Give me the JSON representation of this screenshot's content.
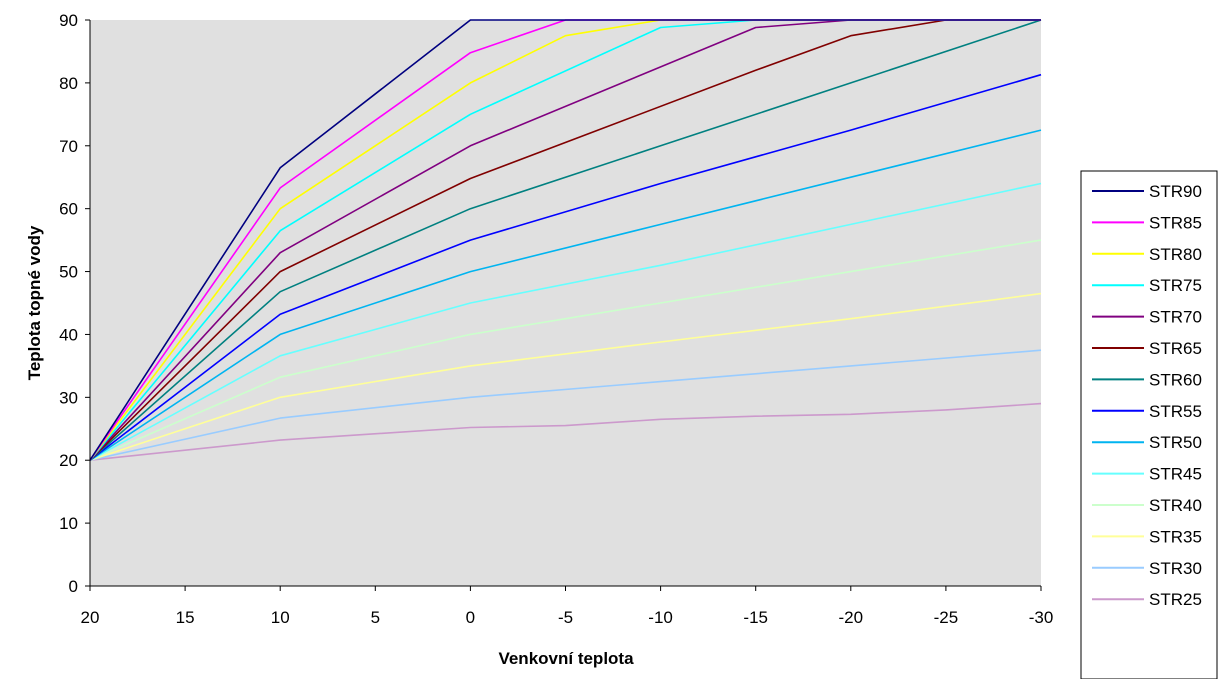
{
  "chart_data": {
    "type": "line",
    "title": "",
    "xlabel": "Venkovní teplota",
    "ylabel": "Teplota topné vody",
    "x": [
      20,
      10,
      0,
      -10,
      -20,
      -30
    ],
    "x_ticks": [
      "20",
      "15",
      "10",
      "5",
      "0",
      "-5",
      "-10",
      "-15",
      "-20",
      "-25",
      "-30"
    ],
    "y_ticks": [
      "0",
      "10",
      "20",
      "30",
      "40",
      "50",
      "60",
      "70",
      "80",
      "90"
    ],
    "xlim": [
      20,
      -30
    ],
    "ylim": [
      0,
      90
    ],
    "grid": false,
    "plot_background": "#e0e0e0",
    "legend_position": "right",
    "series": [
      {
        "name": "STR90",
        "color": "#000080",
        "points": [
          [
            20,
            20
          ],
          [
            10,
            66.5
          ],
          [
            0,
            90
          ],
          [
            -10,
            90
          ],
          [
            -20,
            90
          ],
          [
            -30,
            90
          ]
        ]
      },
      {
        "name": "STR85",
        "color": "#ff00ff",
        "points": [
          [
            20,
            20
          ],
          [
            10,
            63.3
          ],
          [
            0,
            84.8
          ],
          [
            -5,
            90
          ],
          [
            -10,
            90
          ],
          [
            -20,
            90
          ],
          [
            -30,
            90
          ]
        ]
      },
      {
        "name": "STR80",
        "color": "#ffff00",
        "points": [
          [
            20,
            20
          ],
          [
            10,
            60
          ],
          [
            0,
            80
          ],
          [
            -5,
            87.5
          ],
          [
            -10,
            90
          ],
          [
            -20,
            90
          ],
          [
            -30,
            90
          ]
        ]
      },
      {
        "name": "STR75",
        "color": "#00ffff",
        "points": [
          [
            20,
            20
          ],
          [
            10,
            56.5
          ],
          [
            0,
            75
          ],
          [
            -10,
            88.8
          ],
          [
            -15,
            90
          ],
          [
            -20,
            90
          ],
          [
            -30,
            90
          ]
        ]
      },
      {
        "name": "STR70",
        "color": "#800080",
        "points": [
          [
            20,
            20
          ],
          [
            10,
            53
          ],
          [
            0,
            70
          ],
          [
            -15,
            88.8
          ],
          [
            -20,
            90
          ],
          [
            -30,
            90
          ]
        ]
      },
      {
        "name": "STR65",
        "color": "#800000",
        "points": [
          [
            20,
            20
          ],
          [
            10,
            50
          ],
          [
            0,
            64.8
          ],
          [
            -15,
            82
          ],
          [
            -20,
            87.5
          ],
          [
            -25,
            90
          ],
          [
            -30,
            90
          ]
        ]
      },
      {
        "name": "STR60",
        "color": "#008080",
        "points": [
          [
            20,
            20
          ],
          [
            10,
            46.8
          ],
          [
            0,
            60
          ],
          [
            -10,
            70
          ],
          [
            -20,
            80
          ],
          [
            -30,
            90
          ]
        ]
      },
      {
        "name": "STR55",
        "color": "#0000ff",
        "points": [
          [
            20,
            20
          ],
          [
            10,
            43.2
          ],
          [
            0,
            55
          ],
          [
            -10,
            64
          ],
          [
            -20,
            72.5
          ],
          [
            -30,
            81.3
          ]
        ]
      },
      {
        "name": "STR50",
        "color": "#00b4f0",
        "points": [
          [
            20,
            20
          ],
          [
            10,
            40
          ],
          [
            0,
            50
          ],
          [
            -10,
            57.5
          ],
          [
            -20,
            65
          ],
          [
            -30,
            72.5
          ]
        ]
      },
      {
        "name": "STR45",
        "color": "#66ffff",
        "points": [
          [
            20,
            20
          ],
          [
            10,
            36.6
          ],
          [
            0,
            45
          ],
          [
            -10,
            51
          ],
          [
            -20,
            57.5
          ],
          [
            -30,
            64
          ]
        ]
      },
      {
        "name": "STR40",
        "color": "#ccffcc",
        "points": [
          [
            20,
            20
          ],
          [
            10,
            33.2
          ],
          [
            0,
            40
          ],
          [
            -10,
            45
          ],
          [
            -20,
            50
          ],
          [
            -30,
            55
          ]
        ]
      },
      {
        "name": "STR35",
        "color": "#ffff99",
        "points": [
          [
            20,
            20
          ],
          [
            10,
            30
          ],
          [
            0,
            35
          ],
          [
            -10,
            38.8
          ],
          [
            -20,
            42.5
          ],
          [
            -30,
            46.5
          ]
        ]
      },
      {
        "name": "STR30",
        "color": "#99ccff",
        "points": [
          [
            20,
            20
          ],
          [
            10,
            26.7
          ],
          [
            0,
            30
          ],
          [
            -10,
            32.5
          ],
          [
            -20,
            35
          ],
          [
            -30,
            37.5
          ]
        ]
      },
      {
        "name": "STR25",
        "color": "#cc99cc",
        "points": [
          [
            20,
            20
          ],
          [
            10,
            23.2
          ],
          [
            0,
            25.2
          ],
          [
            -5,
            25.5
          ],
          [
            -10,
            26.5
          ],
          [
            -15,
            27
          ],
          [
            -20,
            27.3
          ],
          [
            -25,
            28
          ],
          [
            -30,
            29
          ]
        ]
      }
    ]
  }
}
